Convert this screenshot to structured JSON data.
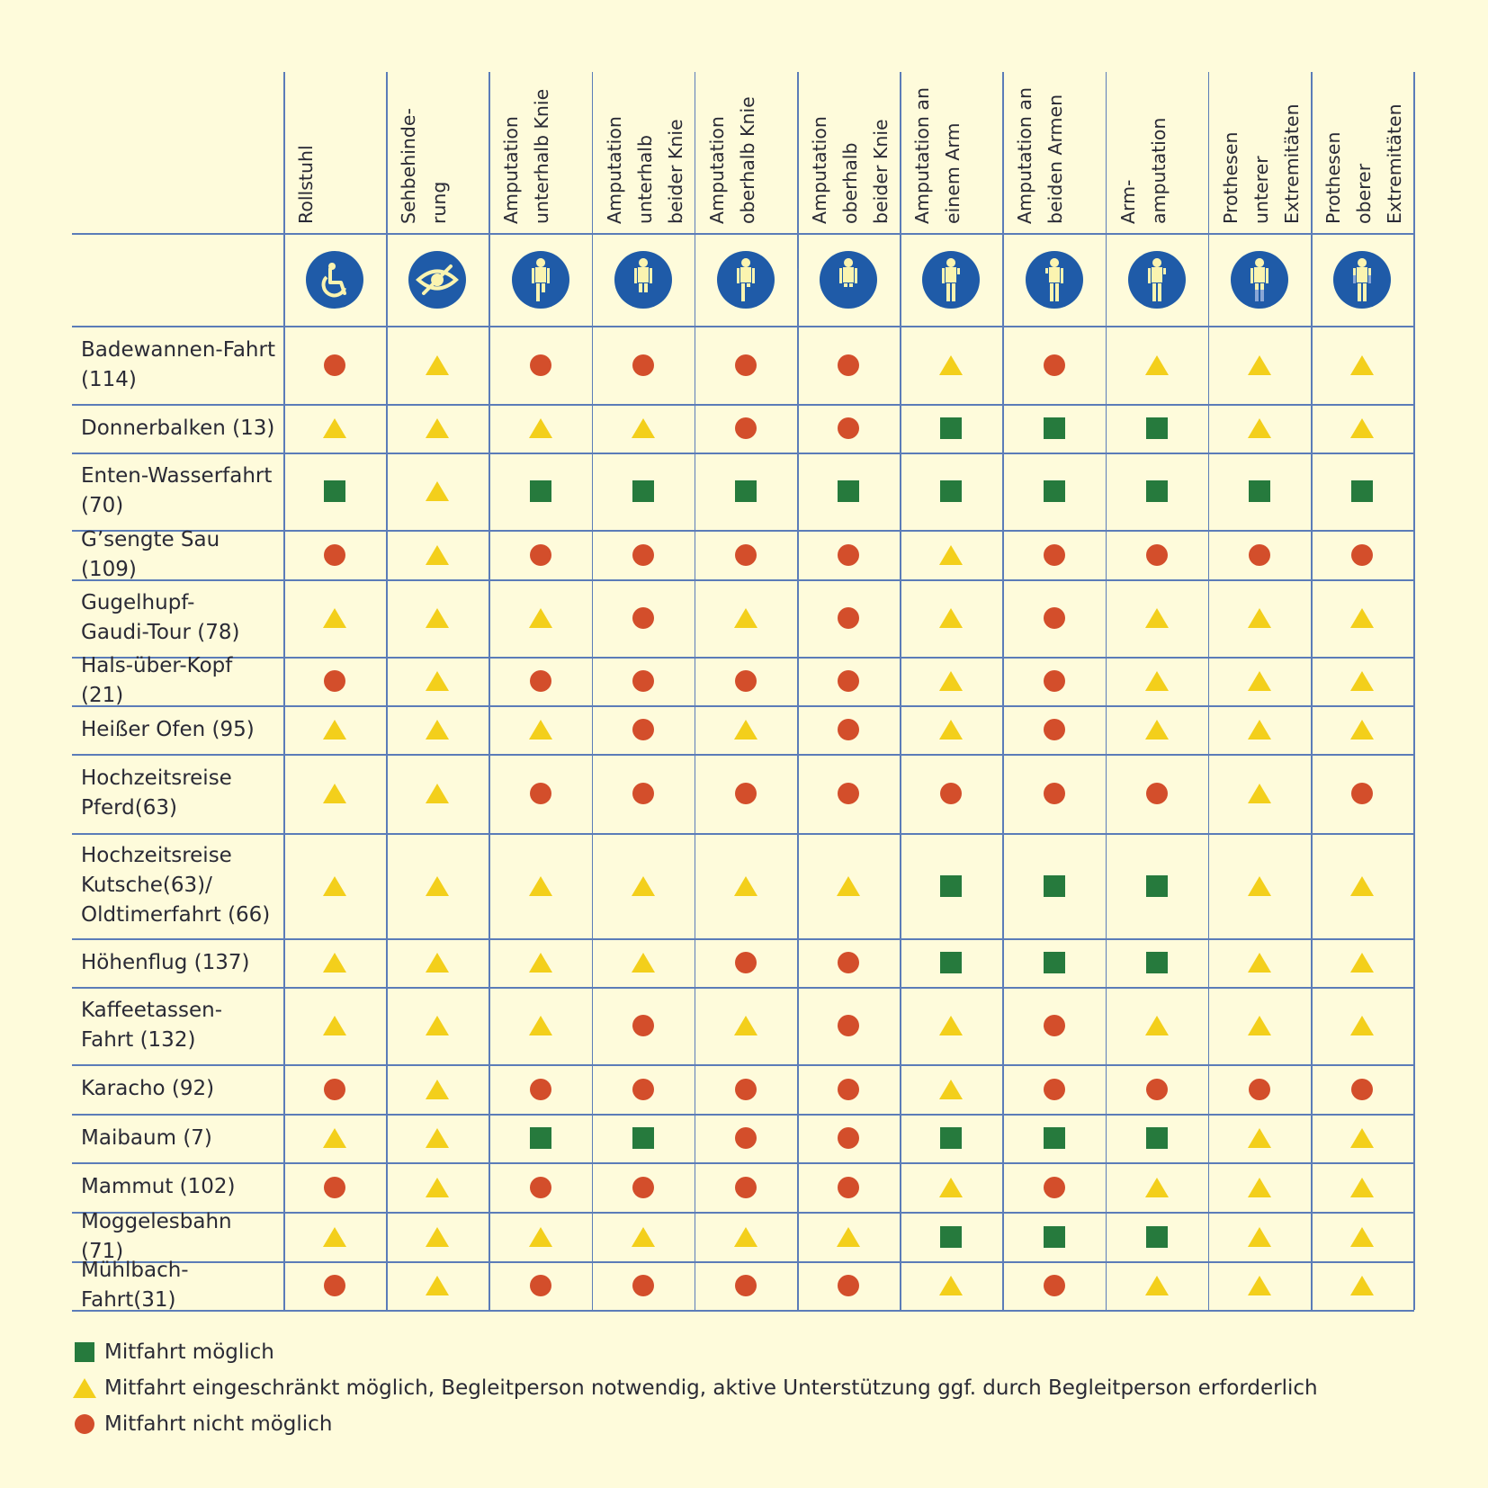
{
  "colors": {
    "background": "#fefbdb",
    "grid": "#5b7cb8",
    "icon_circle": "#1f5ba8",
    "icon_figure": "#fbf4b0",
    "possible": "#267a3d",
    "restricted": "#f3cf1b",
    "not_possible": "#d34e2b"
  },
  "columns": [
    {
      "title": "Rollstuhl",
      "icon": "wheelchair-icon"
    },
    {
      "title": "Sehbehinde-\nrung",
      "icon": "visual-impairment-icon"
    },
    {
      "title": "Amputation\nunterhalb Knie",
      "icon": "amputation-below-knee-icon"
    },
    {
      "title": "Amputation\nunterhalb\nbeider Knie",
      "icon": "amputation-below-both-knees-icon"
    },
    {
      "title": "Amputation\noberhalb Knie",
      "icon": "amputation-above-knee-icon"
    },
    {
      "title": "Amputation\noberhalb\nbeider Knie",
      "icon": "amputation-above-both-knees-icon"
    },
    {
      "title": "Amputation an\neinem Arm",
      "icon": "amputation-one-arm-icon"
    },
    {
      "title": "Amputation an\nbeiden Armen",
      "icon": "amputation-both-arms-icon"
    },
    {
      "title": "Arm-\namputation",
      "icon": "arm-amputation-icon"
    },
    {
      "title": "Prothesen\nunterer\nExtremitäten",
      "icon": "prosthesis-lower-limbs-icon"
    },
    {
      "title": "Prothesen\noberer\nExtremitäten",
      "icon": "prosthesis-upper-limbs-icon"
    }
  ],
  "rows": [
    {
      "name": "Badewannen-Fahrt\n(114)",
      "values": [
        "circle",
        "triangle",
        "circle",
        "circle",
        "circle",
        "circle",
        "triangle",
        "circle",
        "triangle",
        "triangle",
        "triangle"
      ]
    },
    {
      "name": "Donnerbalken (13)",
      "values": [
        "triangle",
        "triangle",
        "triangle",
        "triangle",
        "circle",
        "circle",
        "square",
        "square",
        "square",
        "triangle",
        "triangle"
      ]
    },
    {
      "name": "Enten-Wasserfahrt\n(70)",
      "values": [
        "square",
        "triangle",
        "square",
        "square",
        "square",
        "square",
        "square",
        "square",
        "square",
        "square",
        "square"
      ]
    },
    {
      "name": "G’sengte Sau (109)",
      "values": [
        "circle",
        "triangle",
        "circle",
        "circle",
        "circle",
        "circle",
        "triangle",
        "circle",
        "circle",
        "circle",
        "circle"
      ]
    },
    {
      "name": "Gugelhupf-\nGaudi-Tour (78)",
      "values": [
        "triangle",
        "triangle",
        "triangle",
        "circle",
        "triangle",
        "circle",
        "triangle",
        "circle",
        "triangle",
        "triangle",
        "triangle"
      ]
    },
    {
      "name": "Hals-über-Kopf (21)",
      "values": [
        "circle",
        "triangle",
        "circle",
        "circle",
        "circle",
        "circle",
        "triangle",
        "circle",
        "triangle",
        "triangle",
        "triangle"
      ]
    },
    {
      "name": "Heißer Ofen (95)",
      "values": [
        "triangle",
        "triangle",
        "triangle",
        "circle",
        "triangle",
        "circle",
        "triangle",
        "circle",
        "triangle",
        "triangle",
        "triangle"
      ]
    },
    {
      "name": "Hochzeitsreise\nPferd(63)",
      "values": [
        "triangle",
        "triangle",
        "circle",
        "circle",
        "circle",
        "circle",
        "circle",
        "circle",
        "circle",
        "triangle",
        "circle"
      ]
    },
    {
      "name": "Hochzeitsreise\nKutsche(63)/\nOldtimerfahrt (66)",
      "values": [
        "triangle",
        "triangle",
        "triangle",
        "triangle",
        "triangle",
        "triangle",
        "square",
        "square",
        "square",
        "triangle",
        "triangle"
      ]
    },
    {
      "name": "Höhenflug (137)",
      "values": [
        "triangle",
        "triangle",
        "triangle",
        "triangle",
        "circle",
        "circle",
        "square",
        "square",
        "square",
        "triangle",
        "triangle"
      ]
    },
    {
      "name": "Kaffeetassen-\nFahrt (132)",
      "values": [
        "triangle",
        "triangle",
        "triangle",
        "circle",
        "triangle",
        "circle",
        "triangle",
        "circle",
        "triangle",
        "triangle",
        "triangle"
      ]
    },
    {
      "name": "Karacho (92)",
      "values": [
        "circle",
        "triangle",
        "circle",
        "circle",
        "circle",
        "circle",
        "triangle",
        "circle",
        "circle",
        "circle",
        "circle"
      ]
    },
    {
      "name": "Maibaum (7)",
      "values": [
        "triangle",
        "triangle",
        "square",
        "square",
        "circle",
        "circle",
        "square",
        "square",
        "square",
        "triangle",
        "triangle"
      ]
    },
    {
      "name": "Mammut (102)",
      "values": [
        "circle",
        "triangle",
        "circle",
        "circle",
        "circle",
        "circle",
        "triangle",
        "circle",
        "triangle",
        "triangle",
        "triangle"
      ]
    },
    {
      "name": "Moggelesbahn (71)",
      "values": [
        "triangle",
        "triangle",
        "triangle",
        "triangle",
        "triangle",
        "triangle",
        "square",
        "square",
        "square",
        "triangle",
        "triangle"
      ]
    },
    {
      "name": "Mühlbach-Fahrt(31)",
      "values": [
        "circle",
        "triangle",
        "circle",
        "circle",
        "circle",
        "circle",
        "triangle",
        "circle",
        "triangle",
        "triangle",
        "triangle"
      ]
    }
  ],
  "legend": [
    {
      "symbol": "square",
      "text": "Mitfahrt möglich"
    },
    {
      "symbol": "triangle",
      "text": "Mitfahrt eingeschränkt möglich, Begleitperson notwendig, aktive Unterstützung ggf. durch Begleitperson erforderlich"
    },
    {
      "symbol": "circle",
      "text": "Mitfahrt nicht möglich"
    }
  ]
}
